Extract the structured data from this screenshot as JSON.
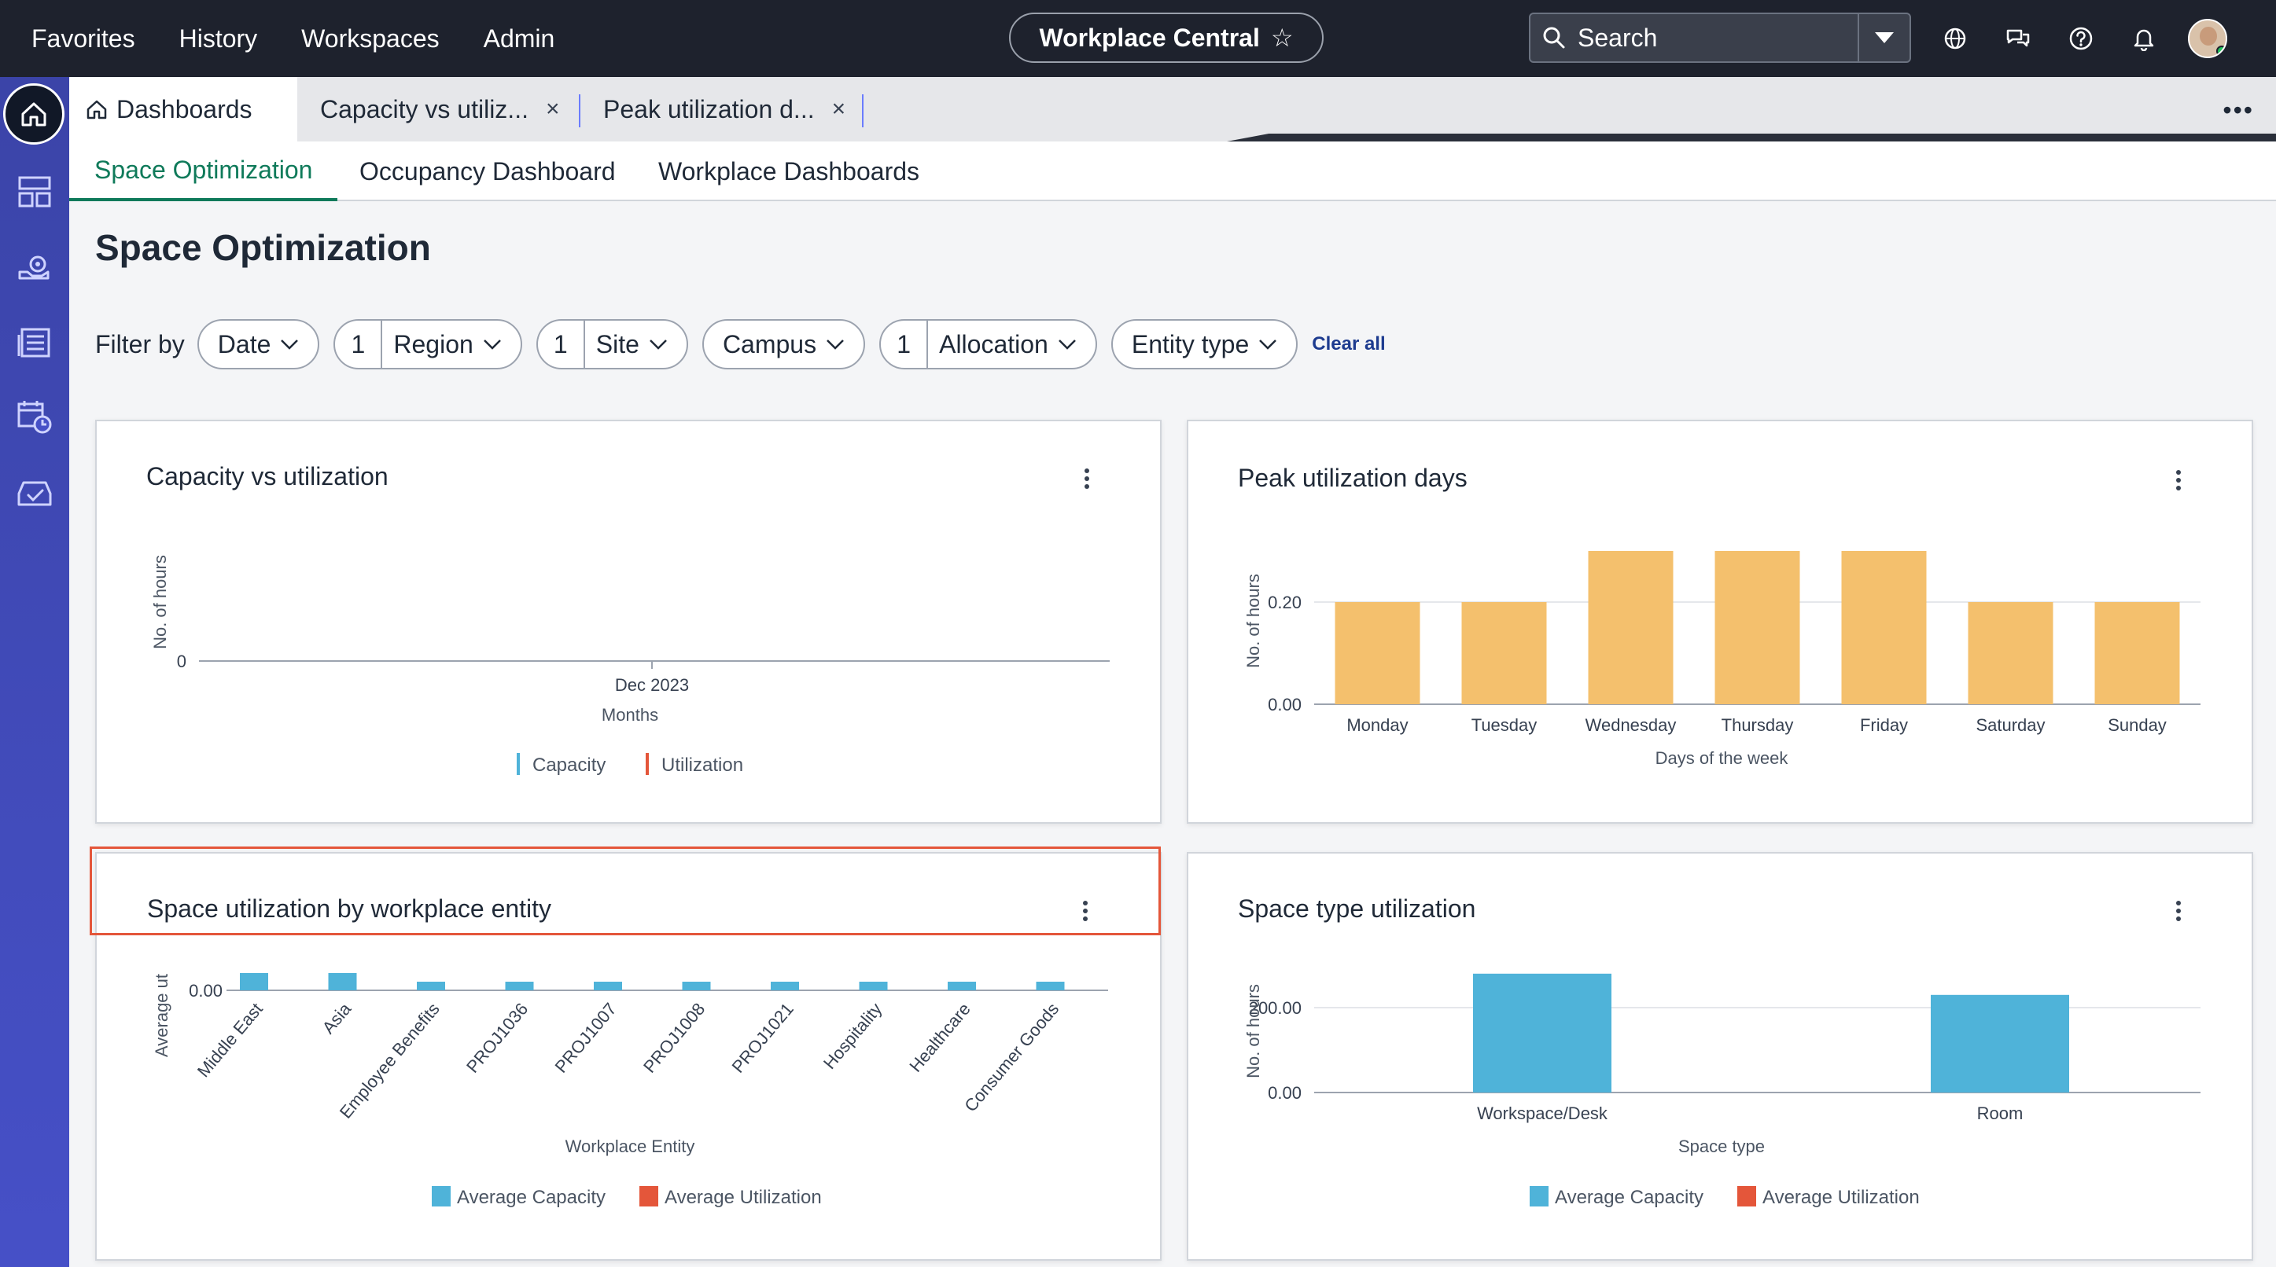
{
  "topbar": {
    "nav": [
      "Favorites",
      "History",
      "Workspaces",
      "Admin"
    ],
    "app_title": "Workplace Central",
    "search_label": "Search",
    "icons": [
      "globe-icon",
      "chat-icon",
      "help-icon",
      "bell-icon",
      "avatar"
    ]
  },
  "rail": {
    "icons": [
      "home-icon",
      "layout-icon",
      "cog-icon",
      "list-icon",
      "calendar-clock-icon",
      "inbox-check-icon"
    ]
  },
  "tabs": [
    {
      "label": "Dashboards",
      "active": true
    },
    {
      "label": "Capacity vs utiliz...",
      "active": false
    },
    {
      "label": "Peak utilization d...",
      "active": false
    }
  ],
  "close_symbol": "×",
  "subtabs": [
    "Space Optimization",
    "Occupancy Dashboard",
    "Workplace Dashboards"
  ],
  "page_title": "Space Optimization",
  "filters": {
    "label": "Filter by",
    "items": [
      {
        "label": "Date",
        "count": ""
      },
      {
        "label": "Region",
        "count": "1"
      },
      {
        "label": "Site",
        "count": "1"
      },
      {
        "label": "Campus",
        "count": ""
      },
      {
        "label": "Allocation",
        "count": "1"
      },
      {
        "label": "Entity type",
        "count": ""
      }
    ],
    "clear_all": "Clear all"
  },
  "cards": {
    "capacity": {
      "title": "Capacity vs utilization"
    },
    "peak": {
      "title": "Peak utilization days"
    },
    "entity": {
      "title": "Space utilization by workplace entity"
    },
    "spacetype": {
      "title": "Space type utilization"
    }
  },
  "chart_data": [
    {
      "type": "line",
      "title": "Capacity vs utilization",
      "xlabel": "Months",
      "ylabel": "No. of hours",
      "categories": [
        "Dec 2023"
      ],
      "y_ticks": [
        "0"
      ],
      "series": [
        {
          "name": "Capacity",
          "values": [
            0
          ],
          "color": "#4fb3d9"
        },
        {
          "name": "Utilization",
          "values": [
            0
          ],
          "color": "#e4563a"
        }
      ],
      "legend": "bottom"
    },
    {
      "type": "bar",
      "title": "Peak utilization days",
      "xlabel": "Days of the week",
      "ylabel": "No. of hours",
      "categories": [
        "Monday",
        "Tuesday",
        "Wednesday",
        "Thursday",
        "Friday",
        "Saturday",
        "Sunday"
      ],
      "values": [
        0.2,
        0.2,
        0.3,
        0.3,
        0.3,
        0.2,
        0.2
      ],
      "y_ticks": [
        "0.00",
        "0.20"
      ],
      "ylim": [
        0,
        0.4
      ],
      "color": "#f4c06d"
    },
    {
      "type": "bar",
      "title": "Space utilization by workplace entity",
      "xlabel": "Workplace Entity",
      "ylabel": "Average ut",
      "categories": [
        "Middle East",
        "Asia",
        "Employee Benefits",
        "PROJ1036",
        "PROJ1007",
        "PROJ1008",
        "PROJ1021",
        "Hospitality",
        "Healthcare",
        "Consumer Goods"
      ],
      "y_ticks": [
        "0.00"
      ],
      "series": [
        {
          "name": "Average Capacity",
          "values": [
            0.004,
            0.004,
            0.002,
            0.002,
            0.002,
            0.002,
            0.002,
            0.002,
            0.002,
            0.002
          ],
          "color": "#4fb3d9"
        },
        {
          "name": "Average Utilization",
          "values": [
            0,
            0,
            0,
            0,
            0,
            0,
            0,
            0,
            0,
            0
          ],
          "color": "#e4563a"
        }
      ],
      "ylim": [
        0,
        0.02
      ],
      "legend": "bottom"
    },
    {
      "type": "bar",
      "title": "Space type utilization",
      "xlabel": "Space type",
      "ylabel": "No. of hours",
      "categories": [
        "Workspace/Desk",
        "Room"
      ],
      "y_ticks": [
        "0.00",
        "200.00"
      ],
      "series": [
        {
          "name": "Average Capacity",
          "values": [
            280,
            230
          ],
          "color": "#4fb3d9"
        },
        {
          "name": "Average Utilization",
          "values": [
            0,
            0
          ],
          "color": "#e4563a"
        }
      ],
      "ylim": [
        0,
        300
      ],
      "legend": "bottom"
    }
  ]
}
